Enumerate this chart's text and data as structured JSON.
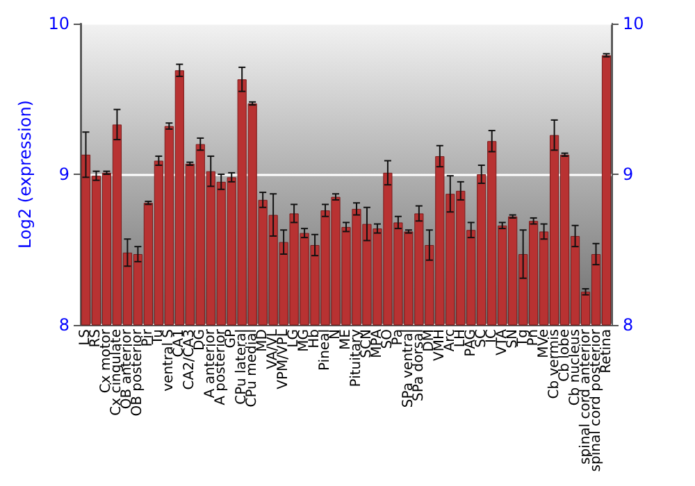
{
  "chart_data": {
    "type": "bar",
    "ylabel": "Log2 (expression)",
    "categories": [
      "LS",
      "RS",
      "Cx motor",
      "Cx cingulate",
      "OB anterior",
      "OB posterior",
      "Pir",
      "Tu",
      "ventral S",
      "CA1",
      "CA2/CA3",
      "DG",
      "A anterior",
      "A posterior",
      "GP",
      "CPu lateral",
      "CPu medial",
      "MD",
      "VA/VL",
      "VPM/VPL",
      "LG",
      "MG",
      "Hb",
      "Pineal",
      "N",
      "ME",
      "Pituitary",
      "SCN",
      "MPA",
      "SO",
      "Pa",
      "SPa ventral",
      "SPa dorsal",
      "DM",
      "VMH",
      "Arc",
      "LH",
      "PAG",
      "SC",
      "IC",
      "VTA",
      "SN",
      "Tg",
      "Pn",
      "MVe",
      "Cb vermis",
      "Cb lobe",
      "Cb nucleus",
      "spinal cord anterior",
      "spinal cord posterior",
      "Retina"
    ],
    "values": [
      9.13,
      8.99,
      9.01,
      9.33,
      8.48,
      8.47,
      8.81,
      9.09,
      9.32,
      9.69,
      9.07,
      9.2,
      9.02,
      8.95,
      8.98,
      9.63,
      9.47,
      8.83,
      8.73,
      8.55,
      8.74,
      8.61,
      8.53,
      8.76,
      8.85,
      8.65,
      8.77,
      8.67,
      8.64,
      9.01,
      8.68,
      8.62,
      8.74,
      8.53,
      9.12,
      8.87,
      8.89,
      8.63,
      9.0,
      9.22,
      8.66,
      8.72,
      8.47,
      8.69,
      8.62,
      9.26,
      9.13,
      8.59,
      8.22,
      8.47,
      9.79
    ],
    "errors": [
      0.15,
      0.03,
      0.01,
      0.1,
      0.09,
      0.05,
      0.01,
      0.03,
      0.02,
      0.04,
      0.01,
      0.04,
      0.1,
      0.05,
      0.03,
      0.08,
      0.01,
      0.05,
      0.14,
      0.08,
      0.06,
      0.03,
      0.07,
      0.04,
      0.02,
      0.03,
      0.04,
      0.11,
      0.03,
      0.08,
      0.04,
      0.01,
      0.05,
      0.1,
      0.07,
      0.12,
      0.06,
      0.05,
      0.06,
      0.07,
      0.02,
      0.01,
      0.16,
      0.02,
      0.05,
      0.1,
      0.01,
      0.07,
      0.02,
      0.07,
      0.01
    ],
    "color": "#b83232",
    "ylim": [
      8,
      10
    ],
    "yticks": [
      8,
      9,
      10
    ],
    "y2lim": [
      8,
      10
    ],
    "y2ticks": [
      8,
      9,
      10
    ],
    "grid": "y"
  }
}
